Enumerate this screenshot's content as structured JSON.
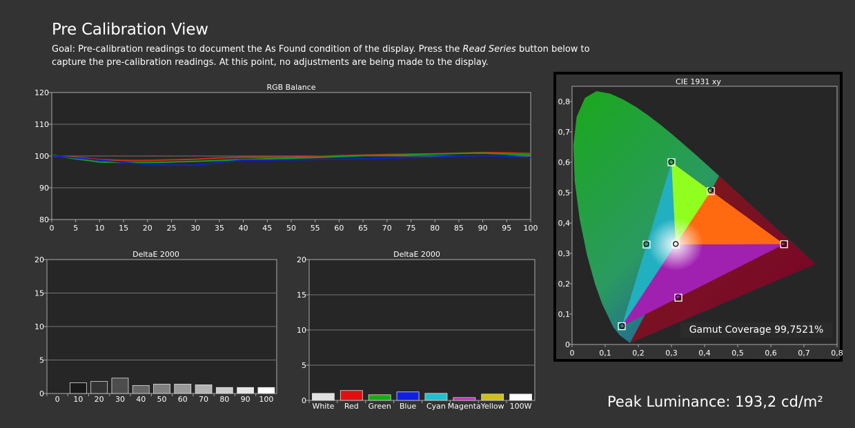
{
  "page": {
    "title": "Pre Calibration View",
    "goal_prefix": "Goal: Pre-calibration readings to document the As Found condition of the display. Press the ",
    "goal_emphasis": "Read Series",
    "goal_suffix": " button below to capture the pre-calibration readings. At this point, no adjustments are being made to the display.",
    "peak_luminance": "Peak Luminance: 193,2 cd/m²",
    "gamut_coverage": "Gamut Coverage 99,7521%"
  },
  "chart_data": [
    {
      "id": "rgb",
      "type": "line",
      "title": "RGB Balance",
      "x": [
        0,
        5,
        10,
        15,
        20,
        25,
        30,
        35,
        40,
        45,
        50,
        55,
        60,
        65,
        70,
        75,
        80,
        85,
        90,
        95,
        100
      ],
      "xticks": [
        "0",
        "5",
        "10",
        "15",
        "20",
        "25",
        "30",
        "35",
        "40",
        "45",
        "50",
        "55",
        "60",
        "65",
        "70",
        "75",
        "80",
        "85",
        "90",
        "95",
        "100"
      ],
      "yticks": [
        "120",
        "110",
        "100",
        "90",
        "80"
      ],
      "ylim": [
        80,
        120
      ],
      "grid": true,
      "series": [
        {
          "color": "#d03010",
          "values": [
            100,
            99.6,
            98.9,
            98.6,
            98.6,
            98.8,
            99,
            99.4,
            99.6,
            99.6,
            99.6,
            99.8,
            100.1,
            100.3,
            100.5,
            100.6,
            100.7,
            100.9,
            101.1,
            101,
            100.8
          ]
        },
        {
          "color": "#10a020",
          "values": [
            100.3,
            99.1,
            98.1,
            98,
            98,
            98.1,
            98.3,
            98.6,
            98.9,
            99.1,
            99.3,
            99.5,
            99.8,
            100.1,
            100.2,
            100.4,
            100.6,
            100.8,
            100.9,
            100.6,
            100.3
          ]
        },
        {
          "color": "#1020d0",
          "values": [
            100.1,
            99.4,
            98.7,
            98,
            97.3,
            97.1,
            97.1,
            98,
            98.7,
            98.7,
            98.8,
            98.9,
            99,
            99.1,
            99.3,
            99.5,
            99.7,
            99.9,
            100.1,
            99.9,
            99.5
          ]
        }
      ]
    },
    {
      "id": "grayscale",
      "type": "bar",
      "title": "DeltaE 2000",
      "categories": [
        "0",
        "10",
        "20",
        "30",
        "40",
        "50",
        "60",
        "70",
        "80",
        "90",
        "100"
      ],
      "values": [
        0,
        1.6,
        1.8,
        2.3,
        1.2,
        1.4,
        1.4,
        1.3,
        0.9,
        0.9,
        0.9
      ],
      "colors": [
        "#000000",
        "#191919",
        "#333333",
        "#4d4d4d",
        "#666666",
        "#808080",
        "#999999",
        "#b3b3b3",
        "#cccccc",
        "#e6e6e6",
        "#ffffff"
      ],
      "yticks": [
        "20",
        "15",
        "10",
        "5",
        "0"
      ],
      "ylim": [
        0,
        20
      ]
    },
    {
      "id": "colors",
      "type": "bar",
      "title": "DeltaE 2000",
      "categories": [
        "White",
        "Red",
        "Green",
        "Blue",
        "Cyan",
        "Magenta",
        "Yellow",
        "100W"
      ],
      "values": [
        1,
        1.4,
        0.8,
        1.2,
        1,
        0.4,
        0.9,
        0.9
      ],
      "colors": [
        "#e0e0e0",
        "#e01010",
        "#10b010",
        "#1020e0",
        "#20c0d0",
        "#d020d0",
        "#d0c010",
        "#ffffff"
      ],
      "yticks": [
        "20",
        "15",
        "10",
        "5",
        "0"
      ],
      "ylim": [
        0,
        20
      ]
    },
    {
      "id": "cie",
      "type": "scatter",
      "title": "CIE 1931 xy",
      "xticks": [
        "0",
        "0,1",
        "0,2",
        "0,3",
        "0,4",
        "0,5",
        "0,6",
        "0,7",
        "0,8"
      ],
      "yticks": [
        "0,8",
        "0,7",
        "0,6",
        "0,5",
        "0,4",
        "0,3",
        "0,2",
        "0,1",
        "0"
      ],
      "xlim": [
        0,
        0.8
      ],
      "ylim": [
        0,
        0.85
      ],
      "gamut_triangle": [
        [
          0.64,
          0.33
        ],
        [
          0.3,
          0.6
        ],
        [
          0.15,
          0.06
        ]
      ],
      "targets": [
        {
          "name": "Red",
          "x": 0.64,
          "y": 0.33
        },
        {
          "name": "Green",
          "x": 0.3,
          "y": 0.6
        },
        {
          "name": "Blue",
          "x": 0.15,
          "y": 0.06
        },
        {
          "name": "Cyan",
          "x": 0.225,
          "y": 0.329
        },
        {
          "name": "Magenta",
          "x": 0.321,
          "y": 0.154
        },
        {
          "name": "Yellow",
          "x": 0.419,
          "y": 0.505
        },
        {
          "name": "White",
          "x": 0.3127,
          "y": 0.329
        }
      ],
      "measured": [
        {
          "name": "Red",
          "x": 0.639,
          "y": 0.331
        },
        {
          "name": "Green",
          "x": 0.299,
          "y": 0.601
        },
        {
          "name": "Blue",
          "x": 0.151,
          "y": 0.061
        },
        {
          "name": "Cyan",
          "x": 0.224,
          "y": 0.331
        },
        {
          "name": "Magenta",
          "x": 0.32,
          "y": 0.156
        },
        {
          "name": "Yellow",
          "x": 0.418,
          "y": 0.508
        },
        {
          "name": "White",
          "x": 0.313,
          "y": 0.331
        }
      ]
    }
  ]
}
